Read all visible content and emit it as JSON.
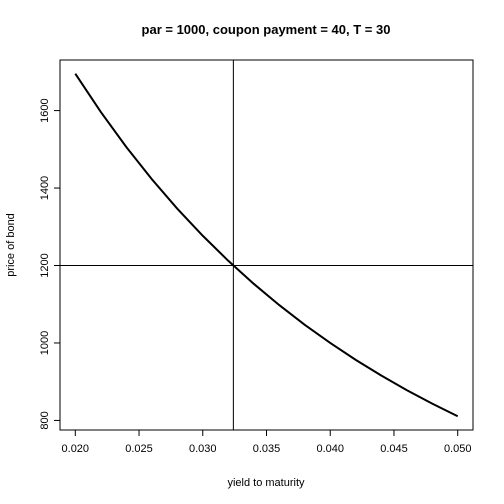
{
  "chart_data": {
    "type": "line",
    "title": "par = 1000, coupon payment = 40, T = 30",
    "xlabel": "yield to maturity",
    "ylabel": "price of bond",
    "x": [
      0.02,
      0.022,
      0.024,
      0.026,
      0.028,
      0.03,
      0.032,
      0.034,
      0.036,
      0.038,
      0.04,
      0.042,
      0.044,
      0.046,
      0.048,
      0.05
    ],
    "series": [
      {
        "color": "#000000",
        "values": [
          1695.2,
          1596.5,
          1506.0,
          1423.0,
          1346.8,
          1276.8,
          1212.2,
          1152.7,
          1097.8,
          1047.0,
          1000.0,
          956.4,
          916.0,
          878.3,
          843.3,
          810.7
        ]
      }
    ],
    "hline": 1200,
    "vline": 0.0324,
    "xlim": [
      0.0188,
      0.0512
    ],
    "ylim": [
      775.3,
      1730.6
    ],
    "xticks": [
      {
        "value": 0.02,
        "label": "0.020"
      },
      {
        "value": 0.025,
        "label": "0.025"
      },
      {
        "value": 0.03,
        "label": "0.030"
      },
      {
        "value": 0.035,
        "label": "0.035"
      },
      {
        "value": 0.04,
        "label": "0.040"
      },
      {
        "value": 0.045,
        "label": "0.045"
      },
      {
        "value": 0.05,
        "label": "0.050"
      }
    ],
    "yticks": [
      800,
      1000,
      1200,
      1400,
      1600
    ]
  }
}
